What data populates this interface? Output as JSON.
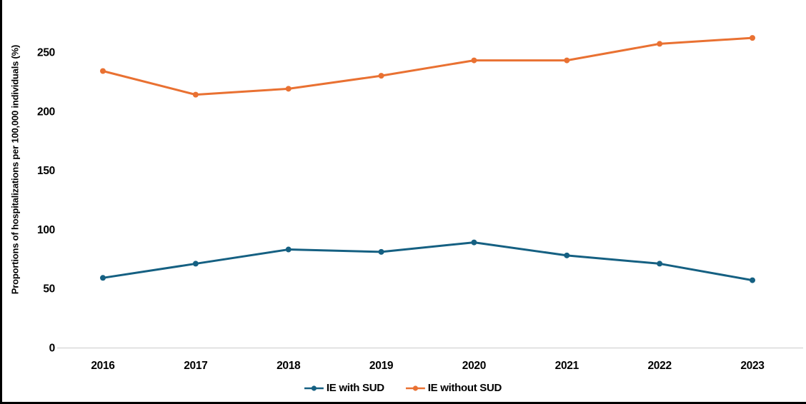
{
  "page": {
    "background": "#FFFFFF"
  },
  "frame": {
    "border_color": "#000000"
  },
  "chart_data": {
    "type": "line",
    "title": "",
    "xlabel": "",
    "ylabel": "Proportions of hospitalizations per 100,000 individuals (%)",
    "categories": [
      "2016",
      "2017",
      "2018",
      "2019",
      "2020",
      "2021",
      "2022",
      "2023"
    ],
    "series": [
      {
        "name": "IE with SUD",
        "color": "#156082",
        "values": [
          59,
          71,
          83,
          81,
          89,
          78,
          71,
          57
        ]
      },
      {
        "name": "IE without SUD",
        "color": "#E97132",
        "values": [
          234,
          214,
          219,
          230,
          243,
          243,
          257,
          262
        ]
      }
    ],
    "ylim": [
      0,
      250
    ],
    "yticks": [
      0,
      50,
      100,
      150,
      200,
      250
    ],
    "grid": false,
    "axis_line_color": "#D9D9D9",
    "tick_label_color": "#000000",
    "legend_position": "bottom"
  }
}
